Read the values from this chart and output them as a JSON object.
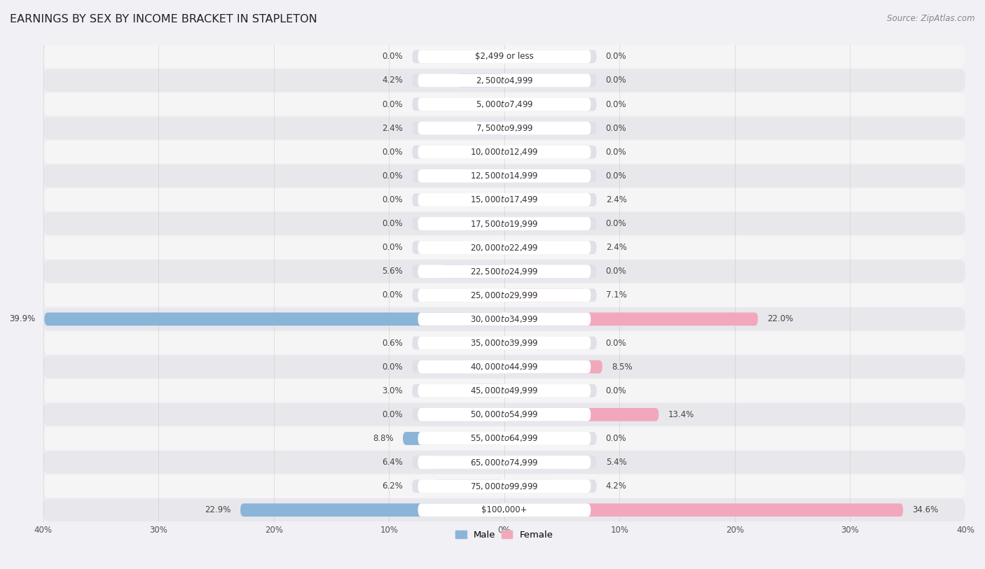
{
  "title": "EARNINGS BY SEX BY INCOME BRACKET IN STAPLETON",
  "source": "Source: ZipAtlas.com",
  "categories": [
    "$2,499 or less",
    "$2,500 to $4,999",
    "$5,000 to $7,499",
    "$7,500 to $9,999",
    "$10,000 to $12,499",
    "$12,500 to $14,999",
    "$15,000 to $17,499",
    "$17,500 to $19,999",
    "$20,000 to $22,499",
    "$22,500 to $24,999",
    "$25,000 to $29,999",
    "$30,000 to $34,999",
    "$35,000 to $39,999",
    "$40,000 to $44,999",
    "$45,000 to $49,999",
    "$50,000 to $54,999",
    "$55,000 to $64,999",
    "$65,000 to $74,999",
    "$75,000 to $99,999",
    "$100,000+"
  ],
  "male_values": [
    0.0,
    4.2,
    0.0,
    2.4,
    0.0,
    0.0,
    0.0,
    0.0,
    0.0,
    5.6,
    0.0,
    39.9,
    0.6,
    0.0,
    3.0,
    0.0,
    8.8,
    6.4,
    6.2,
    22.9
  ],
  "female_values": [
    0.0,
    0.0,
    0.0,
    0.0,
    0.0,
    0.0,
    2.4,
    0.0,
    2.4,
    0.0,
    7.1,
    22.0,
    0.0,
    8.5,
    0.0,
    13.4,
    0.0,
    5.4,
    4.2,
    34.6
  ],
  "male_color": "#8ab4d8",
  "female_color": "#f2a8bc",
  "male_label": "Male",
  "female_label": "Female",
  "xlim": 40.0,
  "row_colors": [
    "#f5f5f5",
    "#e8e8ec"
  ],
  "bar_bg_color": "#e0e0e8",
  "label_bg_color": "#ffffff",
  "title_fontsize": 11.5,
  "source_fontsize": 8.5,
  "value_fontsize": 8.5,
  "category_fontsize": 8.5,
  "legend_fontsize": 9.5,
  "tick_fontsize": 8.5
}
